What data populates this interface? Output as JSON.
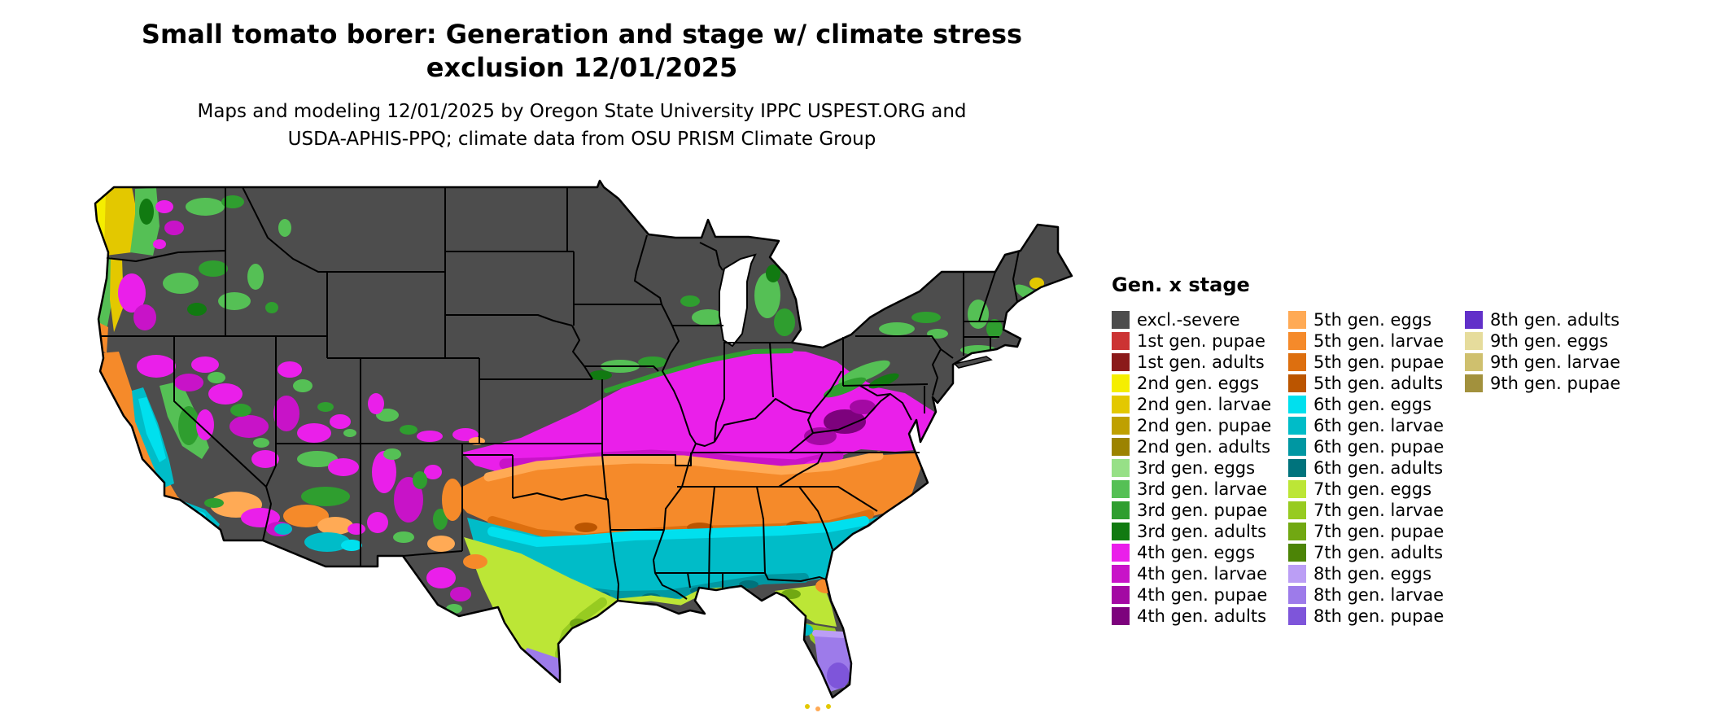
{
  "header": {
    "title_line1": "Small tomato borer: Generation and stage w/ climate stress",
    "title_line2": "exclusion 12/01/2025",
    "subtitle_line1": "Maps and modeling 12/01/2025 by Oregon State University IPPC USPEST.ORG and",
    "subtitle_line2": "USDA-APHIS-PPQ; climate data from OSU PRISM Climate Group"
  },
  "legend": {
    "title": "Gen. x stage",
    "columns": [
      [
        {
          "key": "excl",
          "label": "excl.-severe",
          "color": "#4d4d4d"
        },
        {
          "key": "g1p",
          "label": "1st gen. pupae",
          "color": "#cc3333"
        },
        {
          "key": "g1a",
          "label": "1st gen. adults",
          "color": "#8b1a1a"
        },
        {
          "key": "g2e",
          "label": "2nd gen. eggs",
          "color": "#f5ee00"
        },
        {
          "key": "g2l",
          "label": "2nd gen. larvae",
          "color": "#e3c800"
        },
        {
          "key": "g2p",
          "label": "2nd gen. pupae",
          "color": "#bfa000"
        },
        {
          "key": "g2a",
          "label": "2nd gen. adults",
          "color": "#9c8300"
        },
        {
          "key": "g3e",
          "label": "3rd gen. eggs",
          "color": "#97e087"
        },
        {
          "key": "g3l",
          "label": "3rd gen. larvae",
          "color": "#55c055"
        },
        {
          "key": "g3p",
          "label": "3rd gen. pupae",
          "color": "#2f9e2f"
        },
        {
          "key": "g3a",
          "label": "3rd gen. adults",
          "color": "#117a11"
        },
        {
          "key": "g4e",
          "label": "4th gen. eggs",
          "color": "#ea1fea"
        },
        {
          "key": "g4l",
          "label": "4th gen. larvae",
          "color": "#c813c8"
        },
        {
          "key": "g4p",
          "label": "4th gen. pupae",
          "color": "#a309a3"
        },
        {
          "key": "g4a",
          "label": "4th gen. adults",
          "color": "#7d027d"
        }
      ],
      [
        {
          "key": "g5e",
          "label": "5th gen. eggs",
          "color": "#ffaa55"
        },
        {
          "key": "g5l",
          "label": "5th gen. larvae",
          "color": "#f58a2a"
        },
        {
          "key": "g5p",
          "label": "5th gen. pupae",
          "color": "#dd6f0f"
        },
        {
          "key": "g5a",
          "label": "5th gen. adults",
          "color": "#bb5500"
        },
        {
          "key": "g6e",
          "label": "6th gen. eggs",
          "color": "#00e0ee"
        },
        {
          "key": "g6l",
          "label": "6th gen. larvae",
          "color": "#00bcc8"
        },
        {
          "key": "g6p",
          "label": "6th gen. pupae",
          "color": "#0097a2"
        },
        {
          "key": "g6a",
          "label": "6th gen. adults",
          "color": "#00737c"
        },
        {
          "key": "g7e",
          "label": "7th gen. eggs",
          "color": "#bce636"
        },
        {
          "key": "g7l",
          "label": "7th gen. larvae",
          "color": "#97cb21"
        },
        {
          "key": "g7p",
          "label": "7th gen. pupae",
          "color": "#71a812"
        },
        {
          "key": "g7a",
          "label": "7th gen. adults",
          "color": "#4c8406"
        },
        {
          "key": "g8e",
          "label": "8th gen. eggs",
          "color": "#bb9ef5"
        },
        {
          "key": "g8l",
          "label": "8th gen. larvae",
          "color": "#9d7bea"
        },
        {
          "key": "g8p",
          "label": "8th gen. pupae",
          "color": "#7e55da"
        }
      ],
      [
        {
          "key": "g8a",
          "label": "8th gen. adults",
          "color": "#6130c9"
        },
        {
          "key": "g9e",
          "label": "9th gen. eggs",
          "color": "#e6dc9c"
        },
        {
          "key": "g9l",
          "label": "9th gen. larvae",
          "color": "#cfc06e"
        },
        {
          "key": "g9p",
          "label": "9th gen. pupae",
          "color": "#a2913d"
        }
      ]
    ]
  },
  "map": {
    "background": "#ffffff",
    "border_color": "#000000"
  }
}
